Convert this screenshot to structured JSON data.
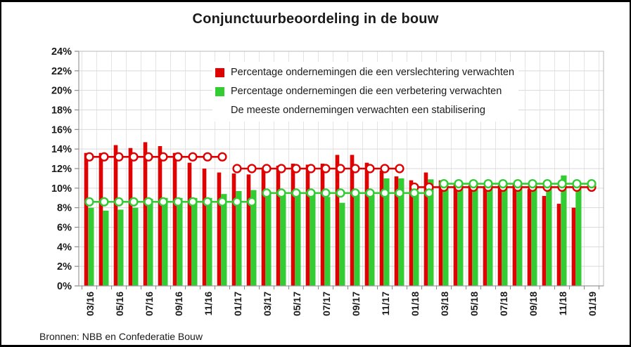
{
  "title": "Conjunctuurbeoordeling in de bouw",
  "source": "Bronnen: NBB en Confederatie Bouw",
  "legend": {
    "items": [
      {
        "label": "Percentage ondernemingen die een verslechtering verwachten",
        "color": "#e00000"
      },
      {
        "label": "Percentage ondernemingen die een verbetering verwachten",
        "color": "#33cc33"
      },
      {
        "label": "De meeste ondernemingen verwachten een stabilisering",
        "color": null
      }
    ]
  },
  "chart_data": {
    "type": "bar",
    "title": "Conjunctuurbeoordeling in de bouw",
    "xlabel": "",
    "ylabel": "",
    "ylim": [
      0,
      24
    ],
    "y_tick_step": 2,
    "grid": true,
    "legend_position": "top-center-inside",
    "y_tick_labels": [
      "0%",
      "2%",
      "4%",
      "6%",
      "8%",
      "10%",
      "12%",
      "14%",
      "16%",
      "18%",
      "20%",
      "22%",
      "24%"
    ],
    "x_tick_labels": [
      "03/16",
      "05/16",
      "07/16",
      "09/16",
      "11/16",
      "01/17",
      "03/17",
      "05/17",
      "07/17",
      "09/17",
      "11/17",
      "01/18",
      "03/18",
      "05/18",
      "07/18",
      "09/18",
      "11/18",
      "01/19"
    ],
    "categories": [
      "03/16",
      "04/16",
      "05/16",
      "06/16",
      "07/16",
      "08/16",
      "09/16",
      "10/16",
      "11/16",
      "12/16",
      "01/17",
      "02/17",
      "03/17",
      "04/17",
      "05/17",
      "06/17",
      "07/17",
      "08/17",
      "09/17",
      "10/17",
      "11/17",
      "12/17",
      "01/18",
      "02/18",
      "03/18",
      "04/18",
      "05/18",
      "06/18",
      "07/18",
      "08/18",
      "09/18",
      "10/18",
      "11/18",
      "12/18",
      "01/19"
    ],
    "series": [
      {
        "name": "Percentage ondernemingen die een verslechtering verwachten",
        "type": "bar",
        "color": "#e00000",
        "values": [
          13.6,
          13.6,
          14.4,
          14.1,
          14.7,
          14.3,
          13.6,
          12.6,
          12.0,
          11.6,
          11.5,
          11.4,
          12.1,
          12.3,
          12.5,
          12.4,
          12.5,
          13.4,
          13.4,
          12.6,
          11.8,
          11.2,
          10.8,
          11.6,
          10.8,
          10.5,
          10.3,
          10.2,
          10.3,
          10.4,
          9.9,
          9.2,
          8.4,
          8.0,
          null
        ]
      },
      {
        "name": "Percentage ondernemingen die een verbetering verwachten",
        "type": "bar",
        "color": "#33cc33",
        "values": [
          8.0,
          7.7,
          7.8,
          8.0,
          8.9,
          9.0,
          9.0,
          9.0,
          9.0,
          9.4,
          9.7,
          9.8,
          9.4,
          9.3,
          9.6,
          9.5,
          9.1,
          8.5,
          9.3,
          9.3,
          11.0,
          11.0,
          9.5,
          10.9,
          10.5,
          10.6,
          10.5,
          10.5,
          10.5,
          10.4,
          10.3,
          10.3,
          11.3,
          10.2,
          null
        ]
      }
    ],
    "red_line": {
      "type": "step-line-with-markers",
      "color": "#e00000",
      "marker": "open-circle",
      "segments": [
        {
          "start": "03/16",
          "end": "12/16",
          "value": 13.2
        },
        {
          "start": "01/17",
          "end": "12/17",
          "value": 12.0
        },
        {
          "start": "01/18",
          "end": "01/19",
          "value": 10.1
        }
      ]
    },
    "green_line": {
      "type": "step-line-with-markers",
      "color": "#33cc33",
      "marker": "open-circle",
      "segments": [
        {
          "start": "03/16",
          "end": "02/17",
          "value": 8.6
        },
        {
          "start": "03/17",
          "end": "02/18",
          "value": 9.5
        },
        {
          "start": "03/18",
          "end": "01/19",
          "value": 10.45
        }
      ]
    }
  }
}
